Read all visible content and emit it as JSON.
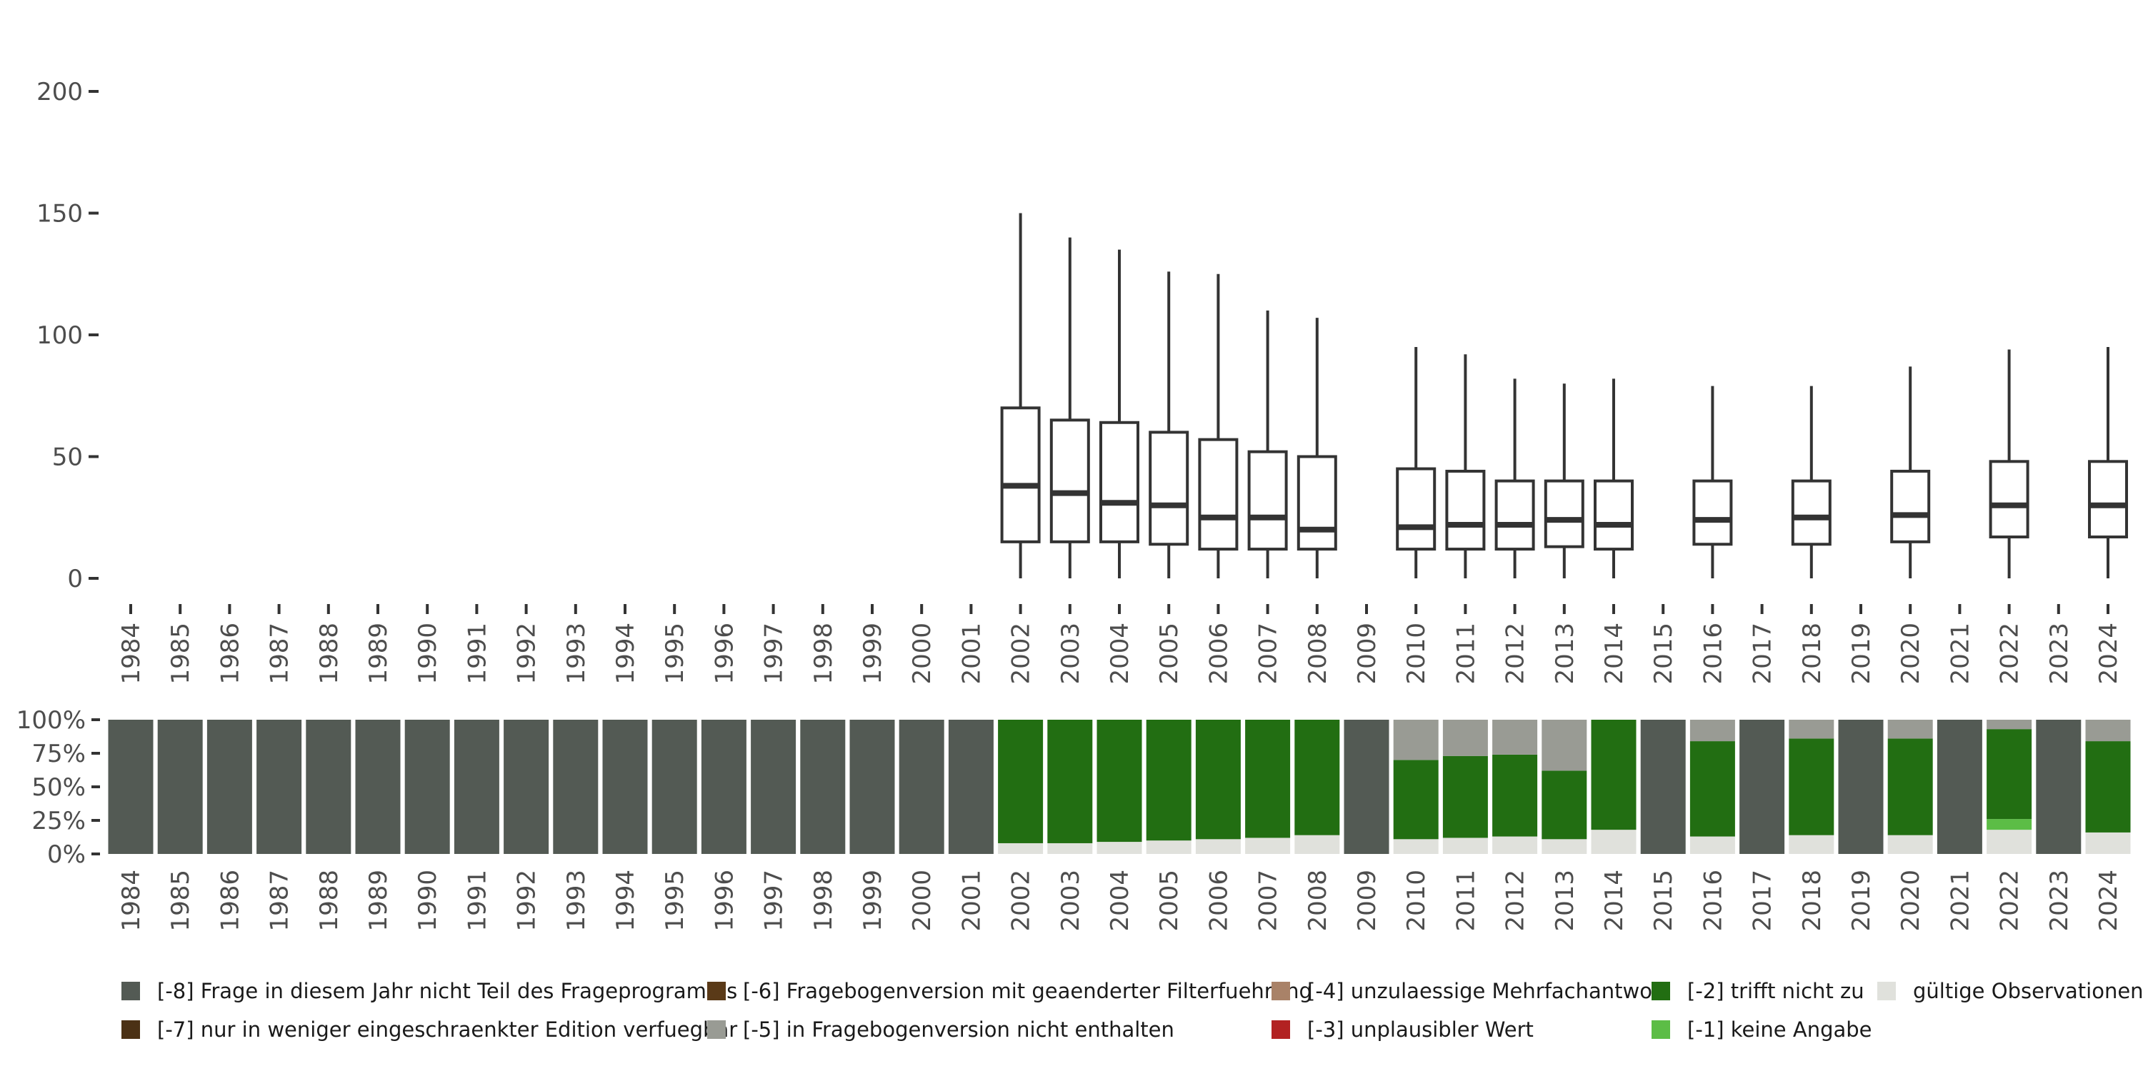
{
  "chart_data": [
    {
      "type": "boxplot",
      "title": "",
      "xlabel": "",
      "ylabel": "",
      "ylim": [
        0,
        200
      ],
      "yticks": [
        0,
        50,
        100,
        150,
        200
      ],
      "categories": [
        "1984",
        "1985",
        "1986",
        "1987",
        "1988",
        "1989",
        "1990",
        "1991",
        "1992",
        "1993",
        "1994",
        "1995",
        "1996",
        "1997",
        "1998",
        "1999",
        "2000",
        "2001",
        "2002",
        "2003",
        "2004",
        "2005",
        "2006",
        "2007",
        "2008",
        "2009",
        "2010",
        "2011",
        "2012",
        "2013",
        "2014",
        "2015",
        "2016",
        "2017",
        "2018",
        "2019",
        "2020",
        "2021",
        "2022",
        "2023",
        "2024"
      ],
      "boxes": [
        {
          "year": "2002",
          "min": 0,
          "q1": 15,
          "median": 38,
          "q3": 70,
          "max": 150
        },
        {
          "year": "2003",
          "min": 0,
          "q1": 15,
          "median": 35,
          "q3": 65,
          "max": 140
        },
        {
          "year": "2004",
          "min": 0,
          "q1": 15,
          "median": 31,
          "q3": 64,
          "max": 135
        },
        {
          "year": "2005",
          "min": 0,
          "q1": 14,
          "median": 30,
          "q3": 60,
          "max": 126
        },
        {
          "year": "2006",
          "min": 0,
          "q1": 12,
          "median": 25,
          "q3": 57,
          "max": 125
        },
        {
          "year": "2007",
          "min": 0,
          "q1": 12,
          "median": 25,
          "q3": 52,
          "max": 110
        },
        {
          "year": "2008",
          "min": 0,
          "q1": 12,
          "median": 20,
          "q3": 50,
          "max": 107
        },
        {
          "year": "2010",
          "min": 0,
          "q1": 12,
          "median": 21,
          "q3": 45,
          "max": 95
        },
        {
          "year": "2011",
          "min": 0,
          "q1": 12,
          "median": 22,
          "q3": 44,
          "max": 92
        },
        {
          "year": "2012",
          "min": 0,
          "q1": 12,
          "median": 22,
          "q3": 40,
          "max": 82
        },
        {
          "year": "2013",
          "min": 0,
          "q1": 13,
          "median": 24,
          "q3": 40,
          "max": 80
        },
        {
          "year": "2014",
          "min": 0,
          "q1": 12,
          "median": 22,
          "q3": 40,
          "max": 82
        },
        {
          "year": "2016",
          "min": 0,
          "q1": 14,
          "median": 24,
          "q3": 40,
          "max": 79
        },
        {
          "year": "2018",
          "min": 0,
          "q1": 14,
          "median": 25,
          "q3": 40,
          "max": 79
        },
        {
          "year": "2020",
          "min": 0,
          "q1": 15,
          "median": 26,
          "q3": 44,
          "max": 87
        },
        {
          "year": "2022",
          "min": 0,
          "q1": 17,
          "median": 30,
          "q3": 48,
          "max": 94
        },
        {
          "year": "2024",
          "min": 0,
          "q1": 17,
          "median": 30,
          "q3": 48,
          "max": 95
        }
      ]
    },
    {
      "type": "stacked_bar",
      "ylim": [
        0,
        100
      ],
      "ytick_labels": [
        "0%",
        "25%",
        "50%",
        "75%",
        "100%"
      ],
      "yticks": [
        0,
        25,
        50,
        75,
        100
      ],
      "categories": [
        "1984",
        "1985",
        "1986",
        "1987",
        "1988",
        "1989",
        "1990",
        "1991",
        "1992",
        "1993",
        "1994",
        "1995",
        "1996",
        "1997",
        "1998",
        "1999",
        "2000",
        "2001",
        "2002",
        "2003",
        "2004",
        "2005",
        "2006",
        "2007",
        "2008",
        "2009",
        "2010",
        "2011",
        "2012",
        "2013",
        "2014",
        "2015",
        "2016",
        "2017",
        "2018",
        "2019",
        "2020",
        "2021",
        "2022",
        "2023",
        "2024"
      ],
      "series": [
        {
          "name": "gültige Observationen",
          "color": "#e0e1dc",
          "values": [
            0,
            0,
            0,
            0,
            0,
            0,
            0,
            0,
            0,
            0,
            0,
            0,
            0,
            0,
            0,
            0,
            0,
            0,
            8,
            8,
            9,
            10,
            11,
            12,
            14,
            0,
            11,
            12,
            13,
            11,
            18,
            0,
            13,
            0,
            14,
            0,
            14,
            0,
            18,
            0,
            16
          ]
        },
        {
          "name": "[-1] keine Angabe",
          "color": "#5cbd46",
          "values": [
            0,
            0,
            0,
            0,
            0,
            0,
            0,
            0,
            0,
            0,
            0,
            0,
            0,
            0,
            0,
            0,
            0,
            0,
            0,
            0,
            0,
            0,
            0,
            0,
            0,
            0,
            0,
            0,
            0,
            0,
            0,
            0,
            0,
            0,
            0,
            0,
            0,
            0,
            8,
            0,
            0
          ]
        },
        {
          "name": "[-2] trifft nicht zu",
          "color": "#226e12",
          "values": [
            0,
            0,
            0,
            0,
            0,
            0,
            0,
            0,
            0,
            0,
            0,
            0,
            0,
            0,
            0,
            0,
            0,
            0,
            92,
            92,
            91,
            90,
            89,
            88,
            86,
            0,
            59,
            61,
            61,
            51,
            82,
            0,
            71,
            0,
            72,
            0,
            72,
            0,
            67,
            0,
            68
          ]
        },
        {
          "name": "[-5] in Fragebogenversion nicht enthalten",
          "color": "#999b94",
          "values": [
            0,
            0,
            0,
            0,
            0,
            0,
            0,
            0,
            0,
            0,
            0,
            0,
            0,
            0,
            0,
            0,
            0,
            0,
            0,
            0,
            0,
            0,
            0,
            0,
            0,
            0,
            30,
            27,
            26,
            38,
            0,
            0,
            16,
            0,
            14,
            0,
            14,
            0,
            7,
            0,
            16
          ]
        },
        {
          "name": "[-8] Frage in diesem Jahr nicht Teil des Frageprogramms",
          "color": "#535a54",
          "values": [
            100,
            100,
            100,
            100,
            100,
            100,
            100,
            100,
            100,
            100,
            100,
            100,
            100,
            100,
            100,
            100,
            100,
            100,
            0,
            0,
            0,
            0,
            0,
            0,
            0,
            100,
            0,
            0,
            0,
            0,
            0,
            100,
            0,
            100,
            0,
            100,
            0,
            100,
            0,
            100,
            0
          ]
        }
      ]
    }
  ],
  "legend": {
    "items": [
      {
        "label": "[-8] Frage in diesem Jahr nicht Teil des Frageprogramms",
        "color": "#535a54"
      },
      {
        "label": "[-7] nur in weniger eingeschraenkter Edition verfuegbar",
        "color": "#4b3115"
      },
      {
        "label": "[-6] Fragebogenversion mit geaenderter Filterfuehrung",
        "color": "#5a3a18"
      },
      {
        "label": "[-5] in Fragebogenversion nicht enthalten",
        "color": "#999b94"
      },
      {
        "label": "[-4] unzulaessige Mehrfachantwort",
        "color": "#a98268"
      },
      {
        "label": "[-3] unplausibler Wert",
        "color": "#b22222"
      },
      {
        "label": "[-2] trifft nicht zu",
        "color": "#226e12"
      },
      {
        "label": "[-1] keine Angabe",
        "color": "#5cbd46"
      },
      {
        "label": "gültige Observationen",
        "color": "#e0e1dc"
      }
    ]
  }
}
